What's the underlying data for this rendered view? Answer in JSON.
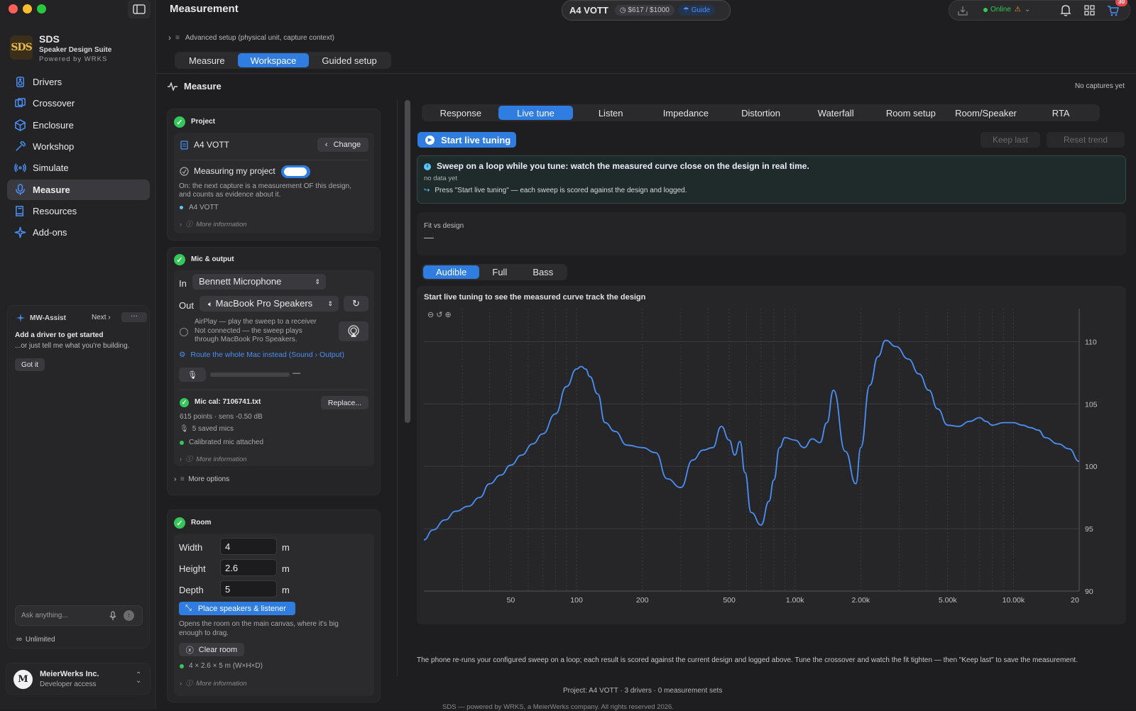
{
  "window": {
    "title": "Measurement"
  },
  "topbar": {
    "project": "A4 VOTT",
    "budget": "$617 / $1000",
    "guide": "Guide",
    "status": "Online",
    "badge": "30"
  },
  "brand": {
    "name": "SDS",
    "subtitle": "Speaker Design Suite",
    "powered": "Powered by WRKS"
  },
  "sidebar": {
    "items": [
      {
        "label": "Drivers",
        "icon": "speaker-icon"
      },
      {
        "label": "Crossover",
        "icon": "crossover-icon"
      },
      {
        "label": "Enclosure",
        "icon": "box-icon"
      },
      {
        "label": "Workshop",
        "icon": "hammer-icon"
      },
      {
        "label": "Simulate",
        "icon": "waves-icon"
      },
      {
        "label": "Measure",
        "icon": "mic-icon"
      },
      {
        "label": "Resources",
        "icon": "book-icon"
      },
      {
        "label": "Add-ons",
        "icon": "sparkle-icon"
      }
    ]
  },
  "assist": {
    "title": "MW-Assist",
    "next": "Next",
    "more": "···",
    "headline": "Add a driver to get started",
    "sub": "...or just tell me what you're building.",
    "got_it": "Got it",
    "placeholder": "Ask anything...",
    "plan": "Unlimited"
  },
  "account": {
    "initials": "M",
    "name": "MeierWerks Inc.",
    "role": "Developer access"
  },
  "advanced": "Advanced setup (physical unit, capture context)",
  "mode_tabs": [
    "Measure",
    "Workspace",
    "Guided setup"
  ],
  "mode_active": 1,
  "section": {
    "title": "Measure",
    "captures": "No captures yet"
  },
  "project_card": {
    "title": "Project",
    "name": "A4 VOTT",
    "change": "Change",
    "measuring": "Measuring my project",
    "desc1": "On: the next capture is a measurement OF this design,",
    "desc2": "and counts as evidence about it.",
    "tag": "A4 VOTT",
    "more": "More information"
  },
  "mic_card": {
    "title": "Mic & output",
    "in_label": "In",
    "in_value": "Bennett Microphone",
    "out_label": "Out",
    "out_value": "MacBook Pro Speakers",
    "airplay1": "AirPlay — play the sweep to a receiver",
    "airplay2": "Not connected — the sweep plays",
    "airplay3": "through MacBook Pro Speakers.",
    "route": "Route the whole Mac instead (Sound › Output)",
    "level_dash": "—",
    "cal": "Mic cal: 7106741.txt",
    "replace": "Replace...",
    "points": "615 points · sens -0.50 dB",
    "saved": "5 saved mics",
    "attached": "Calibrated mic attached",
    "more": "More information",
    "more_options": "More options"
  },
  "room_card": {
    "title": "Room",
    "width_label": "Width",
    "width": "4",
    "height_label": "Height",
    "height": "2.6",
    "depth_label": "Depth",
    "depth": "5",
    "unit": "m",
    "place": "Place speakers & listener",
    "desc1": "Opens the room on the main canvas, where it's big",
    "desc2": "enough to drag.",
    "clear": "Clear room",
    "dims": "4 × 2.6 × 5 m (W×H×D)",
    "more": "More information"
  },
  "analysis_tabs": [
    "Response",
    "Live tune",
    "Listen",
    "Impedance",
    "Distortion",
    "Waterfall",
    "Room setup",
    "Room/Speaker",
    "RTA"
  ],
  "analysis_active": 1,
  "live": {
    "start": "Start live tuning",
    "keep": "Keep last",
    "reset": "Reset trend",
    "info_title": "Sweep on a loop while you tune: watch the measured curve close on the design in real time.",
    "no_data": "no data yet",
    "hint": "Press \"Start live tuning\" — each sweep is scored against the design and logged.",
    "fit_label": "Fit vs design",
    "fit_value": "—"
  },
  "range_tabs": [
    "Audible",
    "Full",
    "Bass"
  ],
  "range_active": 0,
  "chart_caption": "Start live tuning to see the measured curve track the design",
  "footer": {
    "note": "The phone re-runs your configured sweep on a loop; each result is scored against the current design and logged above. Tune the crossover and watch the fit tighten — then \"Keep last\" to save the measurement.",
    "project": "Project: A4 VOTT · 3 drivers · 0 measurement sets",
    "copyright": "SDS — powered by WRKS, a MeierWerks company. All rights reserved 2026."
  },
  "colors": {
    "accent": "#2f7de0",
    "ok": "#35c759",
    "curve": "#4a8ff5"
  },
  "chart_data": {
    "type": "line",
    "xscale": "log",
    "xlim": [
      20,
      20000
    ],
    "ylim": [
      90,
      111.5
    ],
    "xticks": [
      {
        "v": 50,
        "t": "50"
      },
      {
        "v": 100,
        "t": "100"
      },
      {
        "v": 200,
        "t": "200"
      },
      {
        "v": 500,
        "t": "500"
      },
      {
        "v": 1000,
        "t": "1.00k"
      },
      {
        "v": 2000,
        "t": "2.00k"
      },
      {
        "v": 5000,
        "t": "5.00k"
      },
      {
        "v": 10000,
        "t": "10.00k"
      },
      {
        "v": 20000,
        "t": "20"
      }
    ],
    "yticks": [
      {
        "v": 95,
        "t": "95"
      },
      {
        "v": 100,
        "t": "100"
      },
      {
        "v": 105,
        "t": "105"
      },
      {
        "v": 110,
        "t": "110"
      }
    ],
    "grid": true,
    "series": [
      {
        "x": [
          20,
          22,
          25,
          28,
          32,
          36,
          40,
          45,
          50,
          56,
          63,
          70,
          80,
          90,
          100,
          105,
          110,
          115,
          125,
          135,
          150,
          170,
          200,
          230,
          260,
          300,
          340,
          380,
          420,
          460,
          500,
          530,
          560,
          590,
          630,
          700,
          760,
          800,
          850,
          900,
          1000,
          1100,
          1200,
          1300,
          1400,
          1500,
          1700,
          1900,
          2000,
          2200,
          2400,
          2600,
          2900,
          3300,
          3700,
          4100,
          4500,
          5000,
          5600,
          6300,
          7000,
          7500,
          8000,
          9000,
          10000,
          11000,
          12000,
          13000,
          14000,
          16000,
          18000,
          20000
        ],
        "y": [
          94.1,
          94.9,
          95.7,
          96.4,
          96.8,
          97.5,
          98.6,
          99.3,
          100.1,
          100.9,
          101.8,
          102.6,
          104.2,
          106.4,
          107.8,
          108.0,
          107.8,
          107.2,
          105.8,
          103.5,
          102.8,
          101.7,
          101.5,
          101.1,
          99.0,
          98.3,
          100.5,
          101.3,
          101.5,
          103.2,
          102.1,
          100.9,
          102.0,
          99.5,
          96.3,
          95.3,
          97.2,
          98.9,
          101.5,
          102.3,
          102.1,
          101.5,
          102.2,
          101.9,
          103.5,
          106.1,
          101.2,
          98.6,
          101.5,
          106.5,
          108.8,
          110.1,
          109.6,
          108.6,
          107.4,
          106.1,
          104.6,
          103.3,
          103.2,
          103.6,
          103.9,
          103.6,
          103.3,
          103.5,
          103.5,
          103.3,
          103.1,
          102.9,
          102.3,
          101.8,
          101.4,
          100.4
        ]
      }
    ]
  }
}
